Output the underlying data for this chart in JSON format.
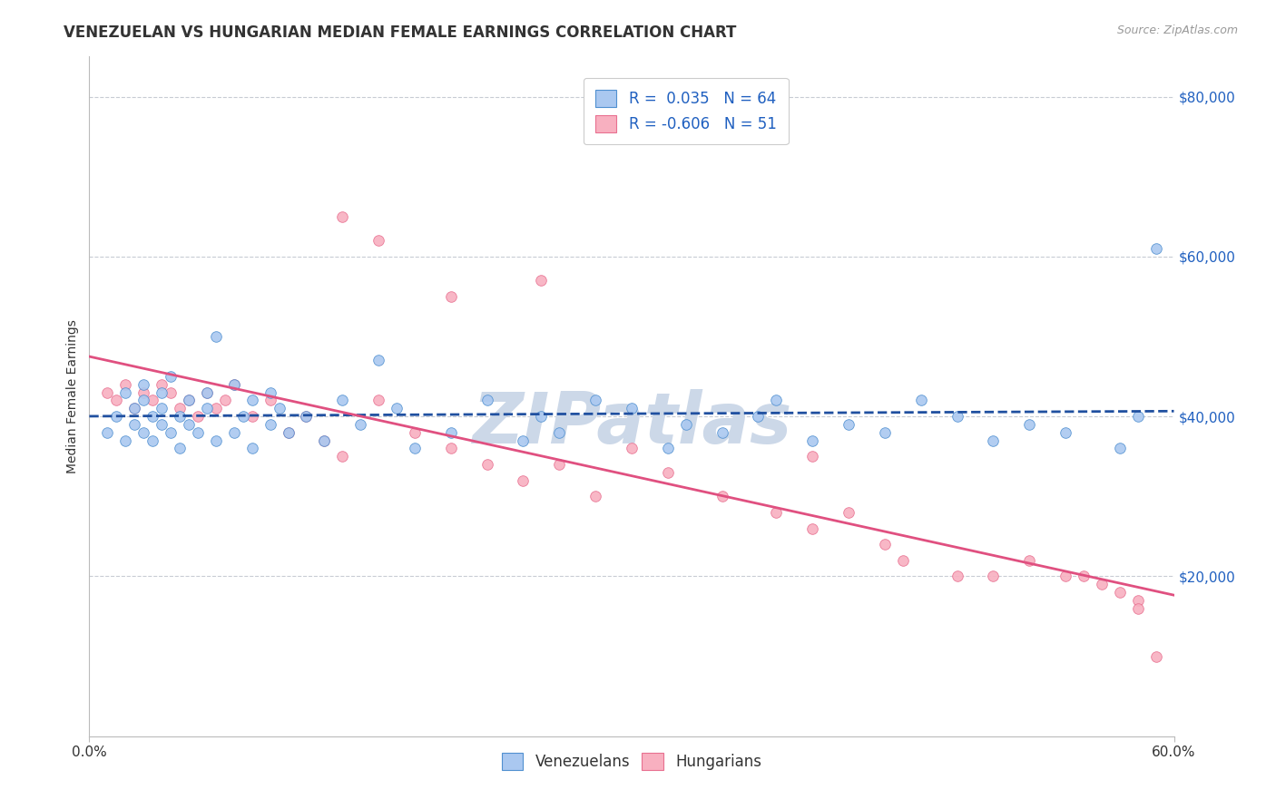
{
  "title": "VENEZUELAN VS HUNGARIAN MEDIAN FEMALE EARNINGS CORRELATION CHART",
  "source_text": "Source: ZipAtlas.com",
  "ylabel": "Median Female Earnings",
  "xmin": 0.0,
  "xmax": 0.6,
  "ymin": 0,
  "ymax": 85000,
  "yticks": [
    20000,
    40000,
    60000,
    80000
  ],
  "ytick_labels": [
    "$20,000",
    "$40,000",
    "$60,000",
    "$80,000"
  ],
  "xtick_labels": [
    "0.0%",
    "60.0%"
  ],
  "legend_r_venezuelan": "0.035",
  "legend_n_venezuelan": "64",
  "legend_r_hungarian": "-0.606",
  "legend_n_hungarian": "51",
  "venezuelan_color": "#aac8f0",
  "venezuelan_edge_color": "#5090d0",
  "hungarian_color": "#f8b0c0",
  "hungarian_edge_color": "#e87090",
  "venezuelan_line_color": "#2050a0",
  "hungarian_line_color": "#e05080",
  "watermark_color": "#ccd8e8",
  "background_color": "#ffffff",
  "grid_color": "#c8ccd4",
  "venezuelan_x": [
    0.01,
    0.015,
    0.02,
    0.02,
    0.025,
    0.025,
    0.03,
    0.03,
    0.03,
    0.035,
    0.035,
    0.04,
    0.04,
    0.04,
    0.045,
    0.045,
    0.05,
    0.05,
    0.055,
    0.055,
    0.06,
    0.065,
    0.065,
    0.07,
    0.07,
    0.08,
    0.08,
    0.085,
    0.09,
    0.09,
    0.1,
    0.1,
    0.105,
    0.11,
    0.12,
    0.13,
    0.14,
    0.15,
    0.16,
    0.17,
    0.18,
    0.2,
    0.22,
    0.24,
    0.25,
    0.26,
    0.28,
    0.3,
    0.32,
    0.33,
    0.35,
    0.37,
    0.38,
    0.4,
    0.42,
    0.44,
    0.46,
    0.48,
    0.5,
    0.52,
    0.54,
    0.57,
    0.58,
    0.59
  ],
  "venezuelan_y": [
    38000,
    40000,
    37000,
    43000,
    39000,
    41000,
    38000,
    42000,
    44000,
    40000,
    37000,
    39000,
    43000,
    41000,
    38000,
    45000,
    40000,
    36000,
    42000,
    39000,
    38000,
    41000,
    43000,
    50000,
    37000,
    44000,
    38000,
    40000,
    42000,
    36000,
    39000,
    43000,
    41000,
    38000,
    40000,
    37000,
    42000,
    39000,
    47000,
    41000,
    36000,
    38000,
    42000,
    37000,
    40000,
    38000,
    42000,
    41000,
    36000,
    39000,
    38000,
    40000,
    42000,
    37000,
    39000,
    38000,
    42000,
    40000,
    37000,
    39000,
    38000,
    36000,
    40000,
    61000
  ],
  "hungarian_x": [
    0.01,
    0.015,
    0.02,
    0.025,
    0.03,
    0.035,
    0.04,
    0.045,
    0.05,
    0.055,
    0.06,
    0.065,
    0.07,
    0.075,
    0.08,
    0.09,
    0.1,
    0.11,
    0.12,
    0.13,
    0.14,
    0.16,
    0.18,
    0.2,
    0.22,
    0.24,
    0.26,
    0.28,
    0.3,
    0.32,
    0.35,
    0.38,
    0.4,
    0.42,
    0.44,
    0.45,
    0.48,
    0.5,
    0.52,
    0.54,
    0.55,
    0.56,
    0.57,
    0.58,
    0.59,
    0.14,
    0.16,
    0.2,
    0.25,
    0.4,
    0.58
  ],
  "hungarian_y": [
    43000,
    42000,
    44000,
    41000,
    43000,
    42000,
    44000,
    43000,
    41000,
    42000,
    40000,
    43000,
    41000,
    42000,
    44000,
    40000,
    42000,
    38000,
    40000,
    37000,
    35000,
    42000,
    38000,
    36000,
    34000,
    32000,
    34000,
    30000,
    36000,
    33000,
    30000,
    28000,
    26000,
    28000,
    24000,
    22000,
    20000,
    20000,
    22000,
    20000,
    20000,
    19000,
    18000,
    17000,
    10000,
    65000,
    62000,
    55000,
    57000,
    35000,
    16000
  ],
  "title_fontsize": 12,
  "axis_label_fontsize": 10,
  "tick_fontsize": 11,
  "legend_fontsize": 12
}
